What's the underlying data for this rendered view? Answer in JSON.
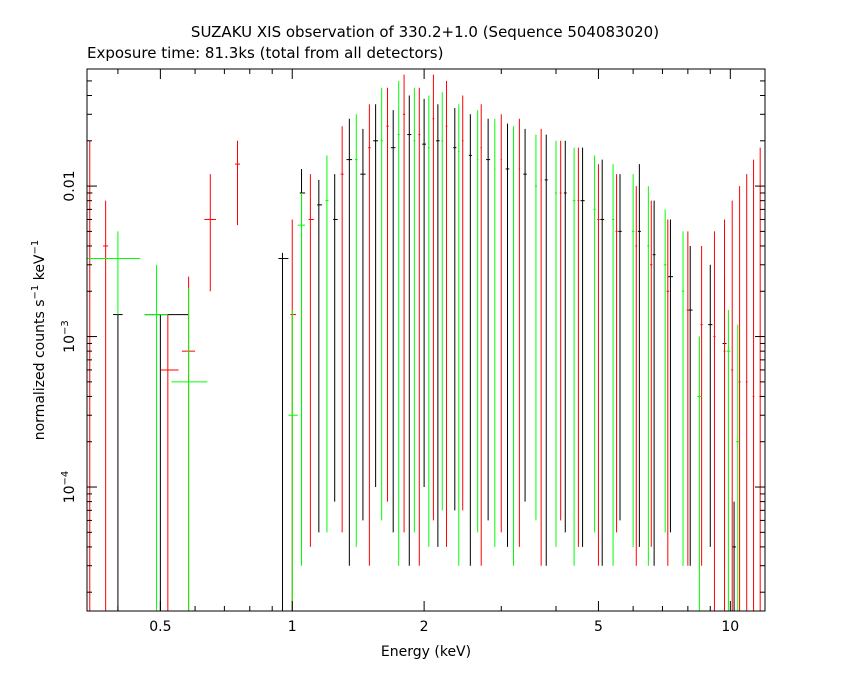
{
  "chart_data": {
    "type": "scatter",
    "title": "SUZAKU XIS observation of 330.2+1.0 (Sequence 504083020)",
    "subtitle": "Exposure time: 81.3ks (total from all detectors)",
    "xlabel": "Energy (keV)",
    "ylabel": {
      "prefix": "normalized counts s",
      "sup1": "−1",
      "mid": " keV",
      "sup2": "−1"
    },
    "xscale": "log",
    "yscale": "log",
    "xlim": [
      0.34,
      12.0
    ],
    "ylim": [
      1.5e-05,
      0.06
    ],
    "x_ticks": [
      {
        "value": 0.5,
        "label": "0.5"
      },
      {
        "value": 1,
        "label": "1"
      },
      {
        "value": 2,
        "label": "2"
      },
      {
        "value": 5,
        "label": "5"
      },
      {
        "value": 10,
        "label": "10"
      }
    ],
    "y_ticks": [
      {
        "value": 0.01,
        "label": "0.01",
        "base": "",
        "exp": ""
      },
      {
        "value": 0.001,
        "label": "",
        "base": "10",
        "exp": "−3"
      },
      {
        "value": 0.0001,
        "label": "",
        "base": "10",
        "exp": "−4"
      }
    ],
    "grid": false,
    "legend": "none",
    "series": [
      {
        "color": "#000000",
        "points": [
          {
            "x": 0.4,
            "y": 0.0014,
            "ylo": 1.5e-05,
            "yhi": 0.0014,
            "xlo": 0.39,
            "xhi": 0.41
          },
          {
            "x": 0.5,
            "y": 0.0014,
            "ylo": 1.5e-05,
            "yhi": 0.0014,
            "xlo": 0.46,
            "xhi": 0.58
          },
          {
            "x": 0.95,
            "y": 0.0033,
            "ylo": 1.5e-05,
            "yhi": 0.0036,
            "xlo": 0.93,
            "xhi": 0.98
          },
          {
            "x": 1.05,
            "y": 0.009,
            "ylo": 4e-05,
            "yhi": 0.013,
            "xlo": 1.04,
            "xhi": 1.07
          },
          {
            "x": 1.15,
            "y": 0.0075,
            "ylo": 5e-05,
            "yhi": 0.011,
            "xlo": 1.14,
            "xhi": 1.17
          },
          {
            "x": 1.25,
            "y": 0.006,
            "ylo": 8e-05,
            "yhi": 0.012,
            "xlo": 1.24,
            "xhi": 1.27
          },
          {
            "x": 1.35,
            "y": 0.015,
            "ylo": 3e-05,
            "yhi": 0.028,
            "xlo": 1.33,
            "xhi": 1.37
          },
          {
            "x": 1.45,
            "y": 0.012,
            "ylo": 6e-05,
            "yhi": 0.024,
            "xlo": 1.43,
            "xhi": 1.47
          },
          {
            "x": 1.55,
            "y": 0.02,
            "ylo": 0.0001,
            "yhi": 0.035,
            "xlo": 1.53,
            "xhi": 1.57
          },
          {
            "x": 1.7,
            "y": 0.018,
            "ylo": 5e-05,
            "yhi": 0.032,
            "xlo": 1.68,
            "xhi": 1.72
          },
          {
            "x": 1.85,
            "y": 0.022,
            "ylo": 3e-05,
            "yhi": 0.04,
            "xlo": 1.83,
            "xhi": 1.87
          },
          {
            "x": 2.0,
            "y": 0.019,
            "ylo": 0.0001,
            "yhi": 0.038,
            "xlo": 1.98,
            "xhi": 2.02
          },
          {
            "x": 2.15,
            "y": 0.02,
            "ylo": 4e-05,
            "yhi": 0.035,
            "xlo": 2.13,
            "xhi": 2.17
          },
          {
            "x": 2.35,
            "y": 0.018,
            "ylo": 7e-05,
            "yhi": 0.033,
            "xlo": 2.33,
            "xhi": 2.37
          },
          {
            "x": 2.55,
            "y": 0.016,
            "ylo": 3e-05,
            "yhi": 0.03,
            "xlo": 2.53,
            "xhi": 2.57
          },
          {
            "x": 2.8,
            "y": 0.015,
            "ylo": 6e-05,
            "yhi": 0.028,
            "xlo": 2.77,
            "xhi": 2.83
          },
          {
            "x": 3.1,
            "y": 0.013,
            "ylo": 4e-05,
            "yhi": 0.026,
            "xlo": 3.07,
            "xhi": 3.13
          },
          {
            "x": 3.4,
            "y": 0.012,
            "ylo": 8e-05,
            "yhi": 0.024,
            "xlo": 3.37,
            "xhi": 3.43
          },
          {
            "x": 3.8,
            "y": 0.011,
            "ylo": 3e-05,
            "yhi": 0.022,
            "xlo": 3.77,
            "xhi": 3.83
          },
          {
            "x": 4.2,
            "y": 0.009,
            "ylo": 5e-05,
            "yhi": 0.02,
            "xlo": 4.17,
            "xhi": 4.23
          },
          {
            "x": 4.6,
            "y": 0.008,
            "ylo": 4e-05,
            "yhi": 0.018,
            "xlo": 4.55,
            "xhi": 4.65
          },
          {
            "x": 5.1,
            "y": 0.006,
            "ylo": 3e-05,
            "yhi": 0.015,
            "xlo": 5.05,
            "xhi": 5.15
          },
          {
            "x": 5.6,
            "y": 0.005,
            "ylo": 6e-05,
            "yhi": 0.012,
            "xlo": 5.55,
            "xhi": 5.65
          },
          {
            "x": 6.2,
            "y": 0.005,
            "ylo": 4e-05,
            "yhi": 0.014,
            "xlo": 6.15,
            "xhi": 6.25
          },
          {
            "x": 6.7,
            "y": 0.0035,
            "ylo": 3e-05,
            "yhi": 0.008,
            "xlo": 6.65,
            "xhi": 6.75
          },
          {
            "x": 7.3,
            "y": 0.0025,
            "ylo": 5e-05,
            "yhi": 0.006,
            "xlo": 7.2,
            "xhi": 7.4
          },
          {
            "x": 8.1,
            "y": 0.0015,
            "ylo": 3e-05,
            "yhi": 0.004,
            "xlo": 8.0,
            "xhi": 8.2
          },
          {
            "x": 9.0,
            "y": 0.0012,
            "ylo": 4e-05,
            "yhi": 0.003,
            "xlo": 8.9,
            "xhi": 9.1
          },
          {
            "x": 9.7,
            "y": 0.0009,
            "ylo": 3e-05,
            "yhi": 0.0025,
            "xlo": 9.6,
            "xhi": 9.8
          },
          {
            "x": 10.2,
            "y": 4e-05,
            "ylo": 1.5e-05,
            "yhi": 8e-05,
            "xlo": 10.1,
            "xhi": 10.3
          }
        ]
      },
      {
        "color": "#ff0000",
        "points": [
          {
            "x": 0.345,
            "y": 0.009,
            "ylo": 1.5e-05,
            "yhi": 0.02,
            "xlo": 0.34,
            "xhi": 0.35
          },
          {
            "x": 0.375,
            "y": 0.004,
            "ylo": 1.5e-05,
            "yhi": 0.008,
            "xlo": 0.37,
            "xhi": 0.38
          },
          {
            "x": 0.52,
            "y": 0.0006,
            "ylo": 1.5e-05,
            "yhi": 0.0014,
            "xlo": 0.5,
            "xhi": 0.55
          },
          {
            "x": 0.58,
            "y": 0.0008,
            "ylo": 1.5e-05,
            "yhi": 0.0025,
            "xlo": 0.56,
            "xhi": 0.6
          },
          {
            "x": 0.65,
            "y": 0.006,
            "ylo": 0.002,
            "yhi": 0.012,
            "xlo": 0.63,
            "xhi": 0.67
          },
          {
            "x": 0.75,
            "y": 0.014,
            "ylo": 0.0055,
            "yhi": 0.02,
            "xlo": 0.74,
            "xhi": 0.76
          },
          {
            "x": 1.0,
            "y": 0.0014,
            "ylo": 1.5e-05,
            "yhi": 0.006,
            "xlo": 0.99,
            "xhi": 1.02
          },
          {
            "x": 1.1,
            "y": 0.006,
            "ylo": 4e-05,
            "yhi": 0.012,
            "xlo": 1.09,
            "xhi": 1.12
          },
          {
            "x": 1.3,
            "y": 0.012,
            "ylo": 5e-05,
            "yhi": 0.025,
            "xlo": 1.29,
            "xhi": 1.31
          },
          {
            "x": 1.5,
            "y": 0.018,
            "ylo": 3e-05,
            "yhi": 0.035,
            "xlo": 1.49,
            "xhi": 1.51
          },
          {
            "x": 1.65,
            "y": 0.025,
            "ylo": 8e-05,
            "yhi": 0.045,
            "xlo": 1.64,
            "xhi": 1.66
          },
          {
            "x": 1.8,
            "y": 0.03,
            "ylo": 5e-05,
            "yhi": 0.055,
            "xlo": 1.79,
            "xhi": 1.81
          },
          {
            "x": 1.95,
            "y": 0.022,
            "ylo": 3e-05,
            "yhi": 0.045,
            "xlo": 1.94,
            "xhi": 1.96
          },
          {
            "x": 2.1,
            "y": 0.028,
            "ylo": 6e-05,
            "yhi": 0.055,
            "xlo": 2.09,
            "xhi": 2.11
          },
          {
            "x": 2.25,
            "y": 0.025,
            "ylo": 4e-05,
            "yhi": 0.05,
            "xlo": 2.24,
            "xhi": 2.26
          },
          {
            "x": 2.45,
            "y": 0.02,
            "ylo": 7e-05,
            "yhi": 0.04,
            "xlo": 2.44,
            "xhi": 2.46
          },
          {
            "x": 2.7,
            "y": 0.018,
            "ylo": 3e-05,
            "yhi": 0.035,
            "xlo": 2.69,
            "xhi": 2.71
          },
          {
            "x": 3.0,
            "y": 0.015,
            "ylo": 5e-05,
            "yhi": 0.03,
            "xlo": 2.99,
            "xhi": 3.01
          },
          {
            "x": 3.3,
            "y": 0.013,
            "ylo": 4e-05,
            "yhi": 0.028,
            "xlo": 3.29,
            "xhi": 3.31
          },
          {
            "x": 3.7,
            "y": 0.011,
            "ylo": 3e-05,
            "yhi": 0.024,
            "xlo": 3.69,
            "xhi": 3.71
          },
          {
            "x": 4.1,
            "y": 0.009,
            "ylo": 6e-05,
            "yhi": 0.02,
            "xlo": 4.08,
            "xhi": 4.12
          },
          {
            "x": 4.5,
            "y": 0.008,
            "ylo": 4e-05,
            "yhi": 0.018,
            "xlo": 4.48,
            "xhi": 4.52
          },
          {
            "x": 5.0,
            "y": 0.006,
            "ylo": 3e-05,
            "yhi": 0.014,
            "xlo": 4.97,
            "xhi": 5.03
          },
          {
            "x": 5.5,
            "y": 0.005,
            "ylo": 5e-05,
            "yhi": 0.012,
            "xlo": 5.47,
            "xhi": 5.53
          },
          {
            "x": 6.1,
            "y": 0.004,
            "ylo": 3e-05,
            "yhi": 0.01,
            "xlo": 6.07,
            "xhi": 6.13
          },
          {
            "x": 6.6,
            "y": 0.003,
            "ylo": 4e-05,
            "yhi": 0.008,
            "xlo": 6.56,
            "xhi": 6.64
          },
          {
            "x": 7.2,
            "y": 0.002,
            "ylo": 3e-05,
            "yhi": 0.006,
            "xlo": 7.15,
            "xhi": 7.25
          },
          {
            "x": 8.0,
            "y": 0.0015,
            "ylo": 3e-05,
            "yhi": 0.005,
            "xlo": 7.95,
            "xhi": 8.05
          },
          {
            "x": 8.6,
            "y": 0.0012,
            "ylo": 3e-05,
            "yhi": 0.004,
            "xlo": 8.55,
            "xhi": 8.65
          },
          {
            "x": 9.2,
            "y": 0.001,
            "ylo": 1.5e-05,
            "yhi": 0.005,
            "xlo": 9.15,
            "xhi": 9.25
          },
          {
            "x": 9.7,
            "y": 0.0008,
            "ylo": 1.5e-05,
            "yhi": 0.006,
            "xlo": 9.65,
            "xhi": 9.75
          },
          {
            "x": 10.1,
            "y": 0.0006,
            "ylo": 1.5e-05,
            "yhi": 0.008,
            "xlo": 10.05,
            "xhi": 10.15
          },
          {
            "x": 10.5,
            "y": 0.0005,
            "ylo": 1.5e-05,
            "yhi": 0.01,
            "xlo": 10.45,
            "xhi": 10.55
          },
          {
            "x": 10.9,
            "y": 0.0005,
            "ylo": 1.5e-05,
            "yhi": 0.012,
            "xlo": 10.85,
            "xhi": 10.95
          },
          {
            "x": 11.3,
            "y": 0.0004,
            "ylo": 1.5e-05,
            "yhi": 0.015,
            "xlo": 11.25,
            "xhi": 11.35
          },
          {
            "x": 11.7,
            "y": 0.0004,
            "ylo": 1.5e-05,
            "yhi": 0.018,
            "xlo": 11.65,
            "xhi": 11.75
          }
        ]
      },
      {
        "color": "#00ff00",
        "points": [
          {
            "x": 0.4,
            "y": 0.0033,
            "ylo": 0.0014,
            "yhi": 0.005,
            "xlo": 0.34,
            "xhi": 0.45
          },
          {
            "x": 0.49,
            "y": 0.0014,
            "ylo": 1.5e-05,
            "yhi": 0.003,
            "xlo": 0.46,
            "xhi": 0.52
          },
          {
            "x": 0.58,
            "y": 0.0005,
            "ylo": 1.5e-05,
            "yhi": 0.0021,
            "xlo": 0.53,
            "xhi": 0.64
          },
          {
            "x": 1.0,
            "y": 0.0003,
            "ylo": 1.5e-05,
            "yhi": 0.0015,
            "xlo": 0.98,
            "xhi": 1.03
          },
          {
            "x": 1.05,
            "y": 0.0055,
            "ylo": 3e-05,
            "yhi": 0.009,
            "xlo": 1.03,
            "xhi": 1.07
          },
          {
            "x": 1.2,
            "y": 0.008,
            "ylo": 5e-05,
            "yhi": 0.016,
            "xlo": 1.19,
            "xhi": 1.21
          },
          {
            "x": 1.4,
            "y": 0.015,
            "ylo": 4e-05,
            "yhi": 0.03,
            "xlo": 1.39,
            "xhi": 1.41
          },
          {
            "x": 1.6,
            "y": 0.02,
            "ylo": 6e-05,
            "yhi": 0.045,
            "xlo": 1.59,
            "xhi": 1.61
          },
          {
            "x": 1.75,
            "y": 0.022,
            "ylo": 3e-05,
            "yhi": 0.05,
            "xlo": 1.74,
            "xhi": 1.76
          },
          {
            "x": 1.9,
            "y": 0.02,
            "ylo": 5e-05,
            "yhi": 0.045,
            "xlo": 1.89,
            "xhi": 1.91
          },
          {
            "x": 2.05,
            "y": 0.018,
            "ylo": 4e-05,
            "yhi": 0.04,
            "xlo": 2.04,
            "xhi": 2.06
          },
          {
            "x": 2.2,
            "y": 0.02,
            "ylo": 7e-05,
            "yhi": 0.042,
            "xlo": 2.19,
            "xhi": 2.21
          },
          {
            "x": 2.4,
            "y": 0.017,
            "ylo": 3e-05,
            "yhi": 0.035,
            "xlo": 2.39,
            "xhi": 2.41
          },
          {
            "x": 2.65,
            "y": 0.015,
            "ylo": 5e-05,
            "yhi": 0.032,
            "xlo": 2.64,
            "xhi": 2.66
          },
          {
            "x": 2.9,
            "y": 0.013,
            "ylo": 4e-05,
            "yhi": 0.028,
            "xlo": 2.89,
            "xhi": 2.91
          },
          {
            "x": 3.2,
            "y": 0.012,
            "ylo": 3e-05,
            "yhi": 0.025,
            "xlo": 3.19,
            "xhi": 3.21
          },
          {
            "x": 3.6,
            "y": 0.01,
            "ylo": 6e-05,
            "yhi": 0.022,
            "xlo": 3.58,
            "xhi": 3.62
          },
          {
            "x": 4.0,
            "y": 0.009,
            "ylo": 4e-05,
            "yhi": 0.02,
            "xlo": 3.98,
            "xhi": 4.02
          },
          {
            "x": 4.4,
            "y": 0.008,
            "ylo": 3e-05,
            "yhi": 0.018,
            "xlo": 4.37,
            "xhi": 4.43
          },
          {
            "x": 4.9,
            "y": 0.007,
            "ylo": 5e-05,
            "yhi": 0.016,
            "xlo": 4.87,
            "xhi": 4.93
          },
          {
            "x": 5.4,
            "y": 0.006,
            "ylo": 3e-05,
            "yhi": 0.014,
            "xlo": 5.37,
            "xhi": 5.43
          },
          {
            "x": 6.0,
            "y": 0.005,
            "ylo": 4e-05,
            "yhi": 0.012,
            "xlo": 5.96,
            "xhi": 6.04
          },
          {
            "x": 6.5,
            "y": 0.004,
            "ylo": 3e-05,
            "yhi": 0.01,
            "xlo": 6.46,
            "xhi": 6.54
          },
          {
            "x": 7.1,
            "y": 0.003,
            "ylo": 5e-05,
            "yhi": 0.007,
            "xlo": 7.05,
            "xhi": 7.15
          },
          {
            "x": 7.8,
            "y": 0.002,
            "ylo": 3e-05,
            "yhi": 0.005,
            "xlo": 7.75,
            "xhi": 7.85
          },
          {
            "x": 8.5,
            "y": 0.0004,
            "ylo": 1.5e-05,
            "yhi": 0.001,
            "xlo": 8.4,
            "xhi": 8.6
          },
          {
            "x": 9.9,
            "y": 0.0008,
            "ylo": 1.5e-05,
            "yhi": 0.0015,
            "xlo": 9.8,
            "xhi": 10.0
          },
          {
            "x": 10.4,
            "y": 0.0002,
            "ylo": 1.5e-05,
            "yhi": 0.0012,
            "xlo": 10.3,
            "xhi": 10.5
          }
        ]
      }
    ]
  }
}
